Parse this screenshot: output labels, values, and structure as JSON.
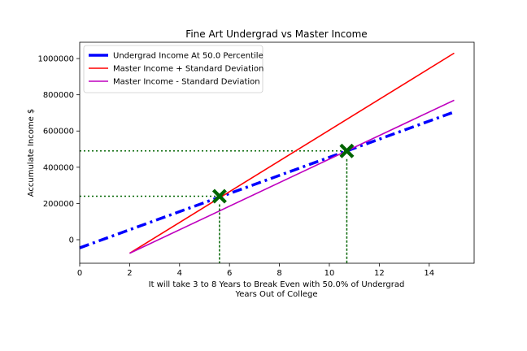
{
  "chart_data": {
    "type": "line",
    "title": "Fine Art Undergrad vs Master Income",
    "ylabel": "Accumulate Income $",
    "xlabel_lines": [
      "It will take 3 to 8 Years to Break Even with 50.0% of Undergrad",
      "Years Out of College"
    ],
    "xlim": [
      0,
      15.8
    ],
    "ylim": [
      -130000,
      1090000
    ],
    "xticks": [
      0,
      2,
      4,
      6,
      8,
      10,
      12,
      14
    ],
    "xtick_labels": [
      "0",
      "2",
      "4",
      "6",
      "8",
      "10",
      "12",
      "14"
    ],
    "yticks": [
      0,
      200000,
      400000,
      600000,
      800000,
      1000000
    ],
    "ytick_labels": [
      "0",
      "200000",
      "400000",
      "600000",
      "800000",
      "1000000"
    ],
    "grid": false,
    "legend_position": "top-left",
    "series": [
      {
        "name": "Undergrad Income At 50.0 Percentile",
        "color": "#0000ff",
        "style": "dashdot",
        "x": [
          0,
          15
        ],
        "y": [
          -45000,
          705000
        ]
      },
      {
        "name": "Master Income + Standard Deviation",
        "color": "#ff0000",
        "style": "solid",
        "x": [
          2,
          15
        ],
        "y": [
          -75000,
          1030000
        ]
      },
      {
        "name": "Master Income - Standard Deviation",
        "color": "#bf00bf",
        "style": "solid",
        "x": [
          2,
          15
        ],
        "y": [
          -75000,
          770000
        ]
      }
    ],
    "break_even_points": [
      {
        "x": 5.6,
        "y": 240000
      },
      {
        "x": 10.7,
        "y": 490000
      }
    ],
    "marker_color": "#006400"
  }
}
